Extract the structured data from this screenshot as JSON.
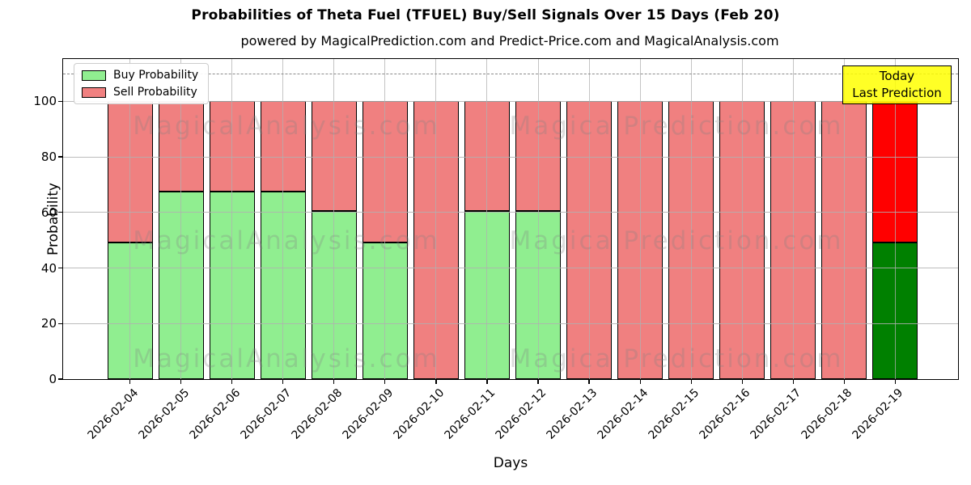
{
  "title": "Probabilities of Theta Fuel (TFUEL) Buy/Sell Signals Over 15 Days (Feb 20)",
  "subtitle": "powered by MagicalPrediction.com and Predict-Price.com and MagicalAnalysis.com",
  "legend": {
    "items": [
      {
        "label": "Buy Probability",
        "color": "#90EE90"
      },
      {
        "label": "Sell Probability",
        "color": "#F08080"
      }
    ]
  },
  "annotation_box": {
    "line1": "Today",
    "line2": "Last Prediction",
    "bg_color": "#FFFF00",
    "border_color": "#000000"
  },
  "watermarks": {
    "left": "MagicalAnalysis.com",
    "right": "Magica Prediction.com"
  },
  "colors": {
    "buy": "#90EE90",
    "sell": "#F08080",
    "buy_today": "#008000",
    "sell_today": "#FF0000",
    "bar_edge": "#000000",
    "grid": "#b0b0b0",
    "dashed_line": "#8a8a8a"
  },
  "chart_data": {
    "type": "bar",
    "stacked": true,
    "title": "Probabilities of Theta Fuel (TFUEL) Buy/Sell Signals Over 15 Days (Feb 20)",
    "xlabel": "Days",
    "ylabel": "Probability",
    "categories": [
      "2026-02-04",
      "2026-02-05",
      "2026-02-06",
      "2026-02-07",
      "2026-02-08",
      "2026-02-09",
      "2026-02-10",
      "2026-02-11",
      "2026-02-12",
      "2026-02-13",
      "2026-02-14",
      "2026-02-15",
      "2026-02-16",
      "2026-02-17",
      "2026-02-18",
      "2026-02-19"
    ],
    "series": [
      {
        "name": "Buy Probability",
        "color": "#90EE90",
        "today_color": "#008000",
        "values": [
          49.3,
          67.4,
          67.4,
          67.4,
          60.5,
          49.3,
          0,
          60.5,
          60.5,
          0,
          0,
          0,
          0,
          0,
          0,
          49.3
        ]
      },
      {
        "name": "Sell Probability",
        "color": "#F08080",
        "today_color": "#FF0000",
        "values": [
          50.7,
          32.6,
          32.6,
          32.6,
          39.5,
          50.7,
          100,
          39.5,
          39.5,
          100,
          100,
          100,
          100,
          100,
          100,
          50.7
        ]
      }
    ],
    "stack_total": 100,
    "ylim": [
      0,
      115.2
    ],
    "yticks": [
      0,
      20,
      40,
      60,
      80,
      100
    ],
    "dashed_line_y": 110,
    "grid": true,
    "grid_above_bars": true,
    "legend_position": "upper left",
    "today_index": 15
  }
}
